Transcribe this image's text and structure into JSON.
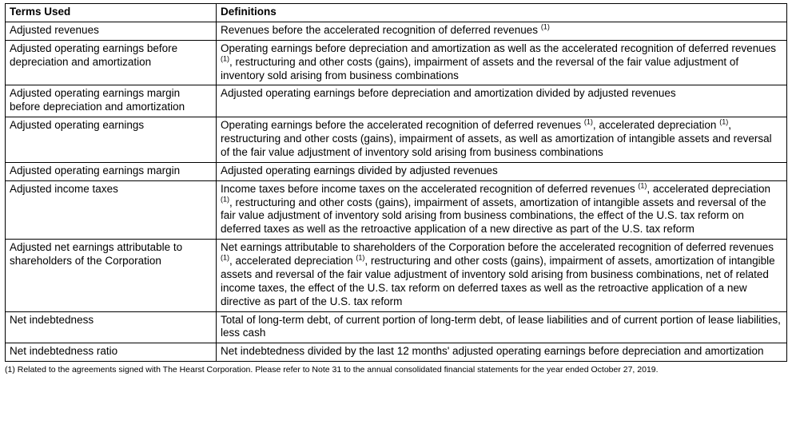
{
  "table": {
    "header_term": "Terms Used",
    "header_def": "Definitions",
    "font_family": "Arial",
    "font_size_pt": 10,
    "border_color": "#000000",
    "background_color": "#ffffff",
    "text_color": "#000000",
    "col_widths_pct": [
      27,
      73
    ],
    "superscript_marker": "(1)",
    "rows": [
      {
        "term": "Adjusted revenues",
        "def_pre": "Revenues before the accelerated recognition of deferred revenues ",
        "def_sup": "(1)",
        "def_post": ""
      },
      {
        "term": "Adjusted operating earnings before depreciation and amortization",
        "def_pre": "Operating earnings before depreciation and amortization as well as the accelerated recognition of deferred revenues ",
        "def_sup": "(1)",
        "def_post": ", restructuring and other costs (gains), impairment of assets and the reversal of the fair value adjustment of inventory sold arising from business combinations"
      },
      {
        "term": "Adjusted operating earnings margin before depreciation and amortization",
        "def_pre": "Adjusted operating earnings before depreciation and amortization divided by adjusted revenues",
        "def_sup": "",
        "def_post": ""
      },
      {
        "term": "Adjusted operating earnings",
        "def_pre": "Operating earnings before the accelerated recognition of deferred revenues ",
        "def_sup": "(1)",
        "def_post": ", accelerated depreciation ",
        "def_sup2": "(1)",
        "def_post2": ", restructuring and other costs (gains), impairment of assets, as well as amortization of intangible assets and reversal of the fair value adjustment of inventory sold arising from business combinations"
      },
      {
        "term": "Adjusted operating earnings margin",
        "def_pre": "Adjusted operating earnings divided by adjusted revenues",
        "def_sup": "",
        "def_post": ""
      },
      {
        "term": "Adjusted income taxes",
        "def_pre": "Income taxes before income taxes on the accelerated recognition of deferred revenues ",
        "def_sup": "(1)",
        "def_post": ", accelerated depreciation ",
        "def_sup2": "(1)",
        "def_post2": ", restructuring and other costs (gains), impairment of assets, amortization of intangible assets and reversal of the fair value adjustment of inventory sold arising from business combinations, the effect of the U.S. tax reform on deferred taxes as well as the retroactive application of a new directive as part of the U.S. tax reform"
      },
      {
        "term": "Adjusted net earnings attributable to shareholders of the Corporation",
        "def_pre": "Net earnings attributable to shareholders of the Corporation before the accelerated recognition of deferred revenues ",
        "def_sup": "(1)",
        "def_post": ", accelerated depreciation ",
        "def_sup2": "(1)",
        "def_post2": ", restructuring and other costs (gains), impairment of assets, amortization of intangible assets and reversal of the fair value adjustment of inventory sold arising from business combinations, net of related income taxes, the effect of the U.S. tax reform on deferred taxes as well as the retroactive application of a new directive as part of the U.S. tax reform"
      },
      {
        "term": "Net indebtedness",
        "def_pre": "Total of long-term debt, of current portion of long-term debt, of lease liabilities and of current portion of lease liabilities, less cash",
        "def_sup": "",
        "def_post": ""
      },
      {
        "term": "Net indebtedness ratio",
        "def_pre": "Net indebtedness divided by the last 12 months' adjusted operating earnings before depreciation and amortization",
        "def_sup": "",
        "def_post": ""
      }
    ]
  },
  "footnote": "(1) Related to the agreements signed with The Hearst Corporation. Please refer to Note 31 to the annual consolidated financial statements for the year ended October 27, 2019."
}
